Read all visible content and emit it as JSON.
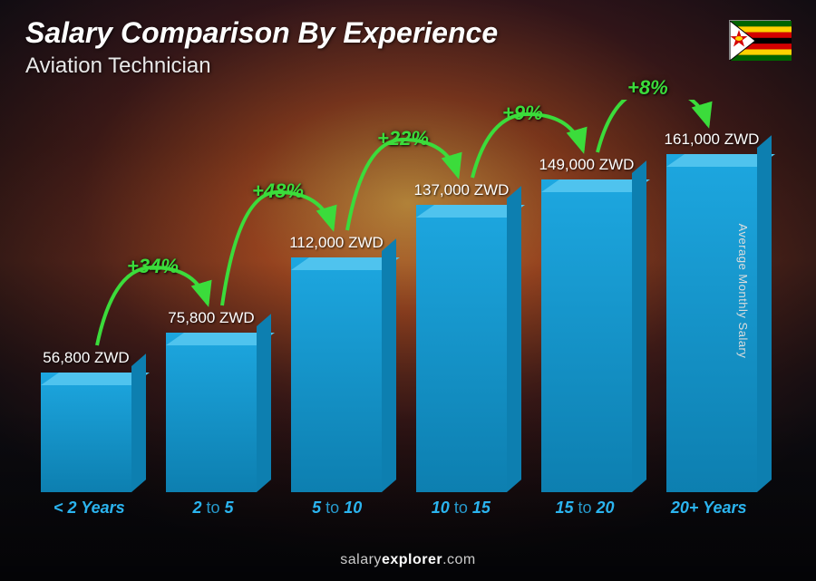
{
  "title": "Salary Comparison By Experience",
  "subtitle": "Aviation Technician",
  "yaxis_label": "Average Monthly Salary",
  "footer_prefix": "salary",
  "footer_bold": "explorer",
  "footer_suffix": ".com",
  "flag_country": "Zimbabwe",
  "chart": {
    "type": "bar",
    "currency": "ZWD",
    "bar_fill": "#1da7e0",
    "bar_top": "#4fc3ee",
    "bar_side": "#0d7fb0",
    "xlabel_color": "#2bb4ef",
    "arrow_color": "#3bdc3b",
    "pct_color": "#3bdc3b",
    "value_color": "#ffffff",
    "background_overlay": "sunset-runway",
    "max_value": 161000,
    "bars": [
      {
        "label_pre": "< 2",
        "label_post": "Years",
        "value": 56800,
        "display": "56,800 ZWD"
      },
      {
        "label_pre": "2",
        "label_mid": "to",
        "label_post": "5",
        "value": 75800,
        "display": "75,800 ZWD"
      },
      {
        "label_pre": "5",
        "label_mid": "to",
        "label_post": "10",
        "value": 112000,
        "display": "112,000 ZWD"
      },
      {
        "label_pre": "10",
        "label_mid": "to",
        "label_post": "15",
        "value": 137000,
        "display": "137,000 ZWD"
      },
      {
        "label_pre": "15",
        "label_mid": "to",
        "label_post": "20",
        "value": 149000,
        "display": "149,000 ZWD"
      },
      {
        "label_pre": "20+",
        "label_post": "Years",
        "value": 161000,
        "display": "161,000 ZWD"
      }
    ],
    "increments": [
      {
        "pct": "+34%"
      },
      {
        "pct": "+48%"
      },
      {
        "pct": "+22%"
      },
      {
        "pct": "+9%"
      },
      {
        "pct": "+8%"
      }
    ]
  },
  "title_fontsize": 32,
  "subtitle_fontsize": 24,
  "value_fontsize": 17,
  "pct_fontsize": 22,
  "xlabel_fontsize": 18
}
